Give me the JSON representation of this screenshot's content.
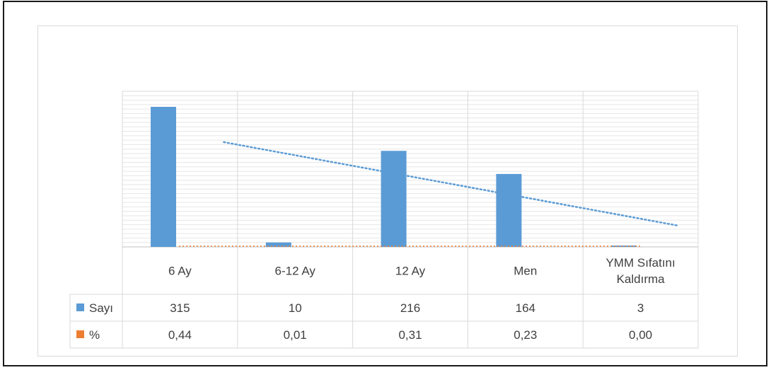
{
  "chart_data": {
    "type": "bar",
    "title": "",
    "xlabel": "",
    "ylabel": "",
    "categories": [
      [
        "6 Ay"
      ],
      [
        "6-12 Ay"
      ],
      [
        "12 Ay"
      ],
      [
        "Men"
      ],
      [
        "YMM Sıfatını",
        "Kaldırma"
      ]
    ],
    "series": [
      {
        "name": "Sayı",
        "values": [
          315,
          10,
          216,
          164,
          3
        ],
        "display": [
          "315",
          "10",
          "216",
          "164",
          "3"
        ],
        "color": "#5b9bd5"
      },
      {
        "name": "%",
        "values": [
          0.44,
          0.01,
          0.31,
          0.23,
          0.0
        ],
        "display": [
          "0,44",
          "0,01",
          "0,31",
          "0,23",
          "0,00"
        ],
        "color": "#ed7d31"
      }
    ],
    "trendline": {
      "series": "Sayı",
      "type": "linear",
      "style": "dotted"
    },
    "ylim": [
      0,
      350
    ],
    "grid": true,
    "legend": "data-table",
    "data_table": true
  }
}
